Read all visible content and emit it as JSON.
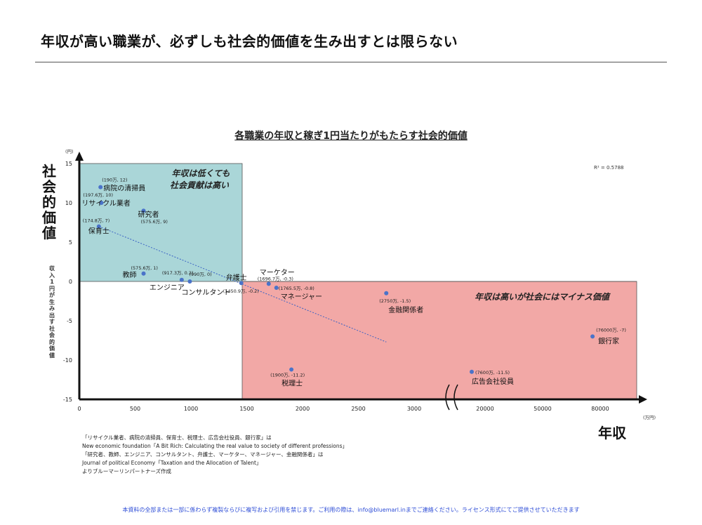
{
  "page": {
    "title": "年収が高い職業が、必ずしも社会的価値を生み出すとは限らない",
    "sources": [
      "「リサイクル業者、病院の清掃員、保育士、税理士、広告会社役員、銀行家」は",
      "New economic foundation「A Bit Rich: Calculating the real value to society of different professions」",
      "「研究者、教師、エンジニア、コンサルタント、弁護士、マーケター、マネージャー、金融関係者」は",
      " Journal of political Economy「Taxation and the Allocation of Talent」",
      "よりブルーマーリンパートナーズ作成"
    ],
    "footer": "本資料の全部または一部に係わらず複製ならびに複写および引用を禁じます。ご利用の際は、info@bluemarl.inまでご連絡ください。ライセンス形式にてご提供させていただきます"
  },
  "chart_data": {
    "type": "scatter",
    "title": "各職業の年収と稼ぎ1円当たりがもたらす社会的価値",
    "y_axis_label_main": "社会的価値",
    "y_axis_label_sub": "収入1円が生み出す社会的価値",
    "y_unit": "(円)",
    "x_axis_label": "年収",
    "x_unit": "(万円)",
    "ylim": [
      -15,
      15
    ],
    "yticks": [
      15,
      10,
      5,
      0,
      -5,
      -10,
      -15
    ],
    "xticks": [
      "0",
      "500",
      "1000",
      "1500",
      "2000",
      "2500",
      "3000",
      "20000",
      "50000",
      "80000"
    ],
    "x_axis_break": true,
    "r_squared": "R² = 0.5788",
    "quadrant_notes": {
      "upper_left": [
        "年収は低くても",
        "社会貢献は高い"
      ],
      "lower_right": "年収は高いが社会にはマイナス価値"
    },
    "trendline": {
      "from": [
        174.8,
        7
      ],
      "to": [
        2750,
        -7.7
      ]
    },
    "points": [
      {
        "name": "病院の清掃員",
        "label": "(190万, 12)",
        "x": 190,
        "y": 12
      },
      {
        "name": "リサイクル業者",
        "label": "(197.6万, 10)",
        "x": 197.6,
        "y": 10
      },
      {
        "name": "研究者",
        "label": "(575.6万, 9)",
        "x": 575.6,
        "y": 9
      },
      {
        "name": "保育士",
        "label": "(174.8万, 7)",
        "x": 174.8,
        "y": 7
      },
      {
        "name": "教師",
        "label": "(575.6万, 1)",
        "x": 575.6,
        "y": 1
      },
      {
        "name": "エンジニア",
        "label": "(917.3万, 0.2)",
        "x": 917.3,
        "y": 0.2
      },
      {
        "name": "コンサルタント",
        "label": "(990万, 0)",
        "x": 990,
        "y": 0
      },
      {
        "name": "弁護士",
        "label": "(1450.9万, -0.2)",
        "x": 1450.9,
        "y": -0.2
      },
      {
        "name": "マーケター",
        "label": "(1696.7万, -0.3)",
        "x": 1696.7,
        "y": -0.3
      },
      {
        "name": "マネージャー",
        "label": "(1765.5万, -0.8)",
        "x": 1765.5,
        "y": -0.8
      },
      {
        "name": "金融関係者",
        "label": "(2750万, -1.5)",
        "x": 2750,
        "y": -1.5
      },
      {
        "name": "税理士",
        "label": "(1900万, -11.2)",
        "x": 1900,
        "y": -11.2
      },
      {
        "name": "広告会社役員",
        "label": "(7600万, -11.5)",
        "x": 7600,
        "y": -11.5
      },
      {
        "name": "銀行家",
        "label": "(76000万, -7)",
        "x": 76000,
        "y": -7
      }
    ]
  },
  "colors": {
    "point": "#4a73c9",
    "upper_left_fill": "#aad6d8",
    "lower_right_fill": "#f2a8a6",
    "trendline": "#3a62c4",
    "footer_text": "#2b4bd6"
  }
}
